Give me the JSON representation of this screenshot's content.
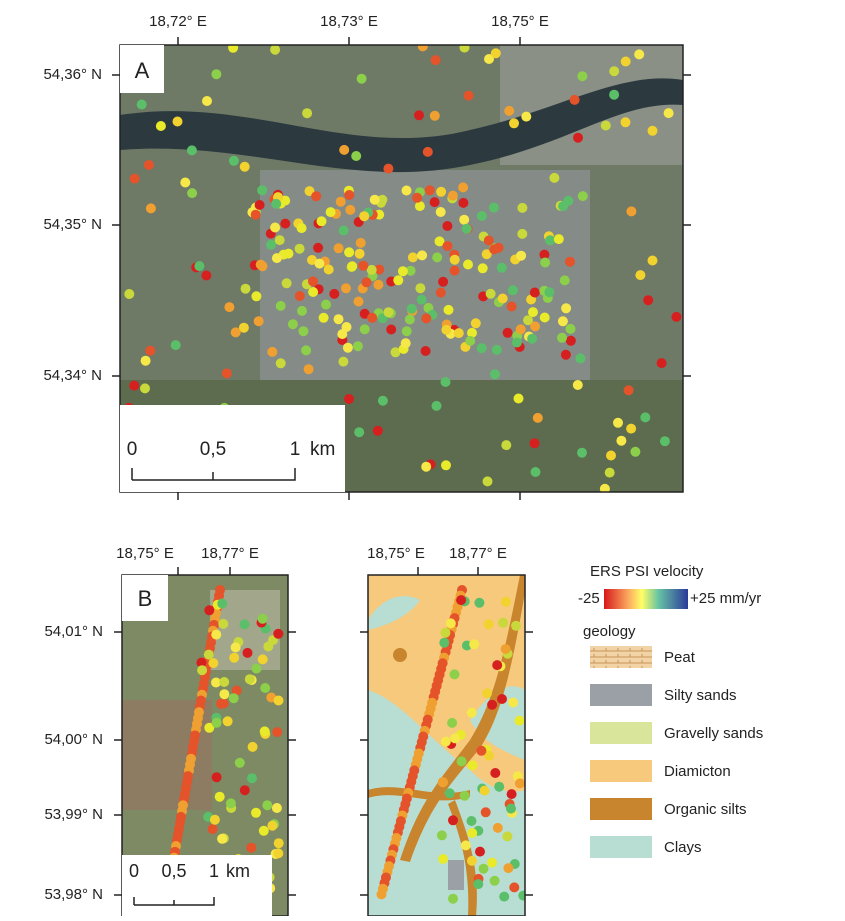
{
  "panel_a": {
    "label": "A",
    "x_ticks": [
      "18,72° E",
      "18,73° E",
      "18,75° E"
    ],
    "y_ticks": [
      "54,36° N",
      "54,35° N",
      "54,34° N"
    ],
    "scale_bar": {
      "ticks": [
        "0",
        "0,5",
        "1"
      ],
      "unit": "km"
    }
  },
  "panel_b": {
    "label": "B",
    "left": {
      "x_ticks": [
        "18,75° E",
        "18,77° E"
      ],
      "y_ticks": [
        "54,01° N",
        "54,00° N",
        "53,99° N",
        "53,98° N"
      ],
      "scale_bar": {
        "ticks": [
          "0",
          "0,5",
          "1"
        ],
        "unit": "km"
      }
    },
    "right": {
      "x_ticks": [
        "18,75° E",
        "18,77° E"
      ]
    }
  },
  "legend": {
    "velocity_title": "ERS PSI velocity",
    "velocity_min": "-25",
    "velocity_max": "+25 mm/yr",
    "geology_title": "geology",
    "geology_items": [
      "Peat",
      "Silty sands",
      "Gravelly sands",
      "Diamicton",
      "Organic silts",
      "Clays"
    ]
  }
}
